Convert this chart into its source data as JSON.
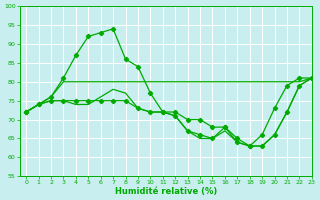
{
  "title": "",
  "xlabel": "Humidité relative (%)",
  "ylabel": "",
  "xlim": [
    -0.5,
    23
  ],
  "ylim": [
    55,
    100
  ],
  "yticks": [
    55,
    60,
    65,
    70,
    75,
    80,
    85,
    90,
    95,
    100
  ],
  "xticks": [
    0,
    1,
    2,
    3,
    4,
    5,
    6,
    7,
    8,
    9,
    10,
    11,
    12,
    13,
    14,
    15,
    16,
    17,
    18,
    19,
    20,
    21,
    22,
    23
  ],
  "background_color": "#c8eef0",
  "grid_color": "#ffffff",
  "line_color": "#00aa00",
  "series": [
    {
      "x": [
        0,
        1,
        2,
        3,
        4,
        5,
        6,
        7,
        8,
        9,
        10,
        11,
        12,
        13,
        14,
        15,
        16,
        17,
        18,
        19,
        20,
        21,
        22,
        23
      ],
      "y": [
        72,
        74,
        76,
        81,
        87,
        92,
        93,
        94,
        86,
        84,
        77,
        72,
        72,
        70,
        70,
        68,
        68,
        65,
        63,
        66,
        73,
        79,
        81,
        81
      ],
      "marker": "D",
      "markersize": 2.2,
      "linewidth": 0.9
    },
    {
      "x": [
        0,
        1,
        2,
        3,
        4,
        5,
        6,
        7,
        8,
        9,
        10,
        11,
        12,
        13,
        14,
        15,
        16,
        17,
        18,
        19,
        20,
        21,
        22,
        23
      ],
      "y": [
        72,
        74,
        76,
        80,
        80,
        80,
        80,
        80,
        80,
        80,
        80,
        80,
        80,
        80,
        80,
        80,
        80,
        80,
        80,
        80,
        80,
        80,
        80,
        81
      ],
      "marker": null,
      "markersize": 0,
      "linewidth": 0.9
    },
    {
      "x": [
        0,
        1,
        2,
        3,
        4,
        5,
        6,
        7,
        8,
        9,
        10,
        11,
        12,
        13,
        14,
        15,
        16,
        17,
        18,
        19,
        20,
        21,
        22,
        23
      ],
      "y": [
        72,
        74,
        75,
        75,
        75,
        75,
        75,
        75,
        75,
        73,
        72,
        72,
        71,
        67,
        66,
        65,
        68,
        64,
        63,
        63,
        66,
        72,
        79,
        81
      ],
      "marker": "D",
      "markersize": 2.2,
      "linewidth": 0.9
    },
    {
      "x": [
        0,
        1,
        2,
        3,
        4,
        5,
        6,
        7,
        8,
        9,
        10,
        11,
        12,
        13,
        14,
        15,
        16,
        17,
        18,
        19,
        20,
        21,
        22,
        23
      ],
      "y": [
        72,
        74,
        75,
        75,
        74,
        74,
        76,
        78,
        77,
        73,
        72,
        72,
        71,
        67,
        65,
        65,
        67,
        64,
        63,
        63,
        66,
        72,
        79,
        81
      ],
      "marker": null,
      "markersize": 0,
      "linewidth": 0.9
    }
  ]
}
